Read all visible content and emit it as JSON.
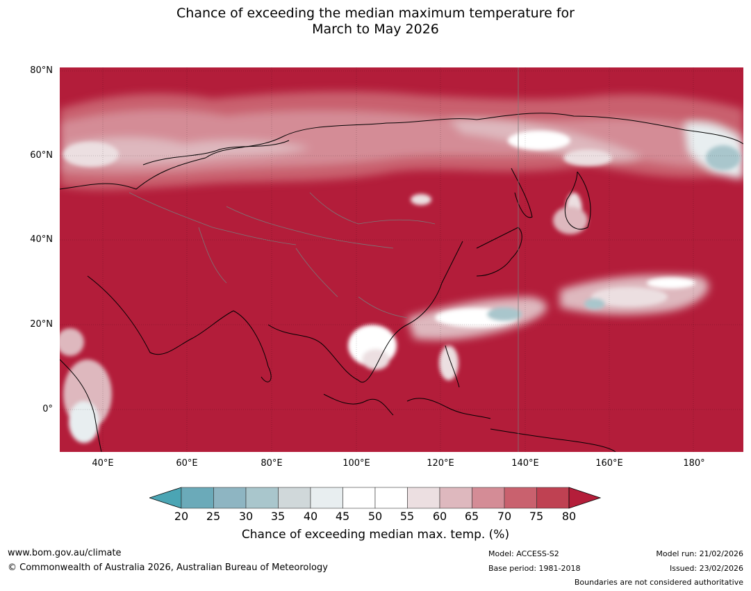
{
  "title_line1": "Chance of exceeding the median maximum temperature for",
  "title_line2": "March to May 2026",
  "lat_labels": [
    "80°N",
    "60°N",
    "40°N",
    "20°N",
    "0°"
  ],
  "lon_labels": [
    "40°E",
    "60°E",
    "80°E",
    "100°E",
    "120°E",
    "140°E",
    "160°E",
    "180°"
  ],
  "colorbar": {
    "ticks": [
      "20",
      "25",
      "30",
      "35",
      "40",
      "45",
      "50",
      "55",
      "60",
      "65",
      "70",
      "75",
      "80"
    ],
    "colors": [
      "#6baab9",
      "#8eb5c2",
      "#a9c6cc",
      "#d0d8da",
      "#e8eef0",
      "#ffffff",
      "#ffffff",
      "#ecdfe1",
      "#deb8be",
      "#d48c96",
      "#c9616e",
      "#bf4152"
    ],
    "under_color": "#4ba5b4",
    "over_color": "#b41e3a",
    "label": "Chance of exceeding median max. temp. (%)"
  },
  "map_colors": {
    "dominant": "#b31d3a"
  },
  "footer": {
    "url": "www.bom.gov.au/climate",
    "copyright": "© Commonwealth of Australia 2026, Australian Bureau of Meteorology",
    "model": "Model: ACCESS-S2",
    "base_period": "Base period: 1981-2018",
    "model_run": "Model run: 21/02/2026",
    "issued": "Issued: 23/02/2026",
    "disclaimer": "Boundaries are not considered authoritative"
  }
}
